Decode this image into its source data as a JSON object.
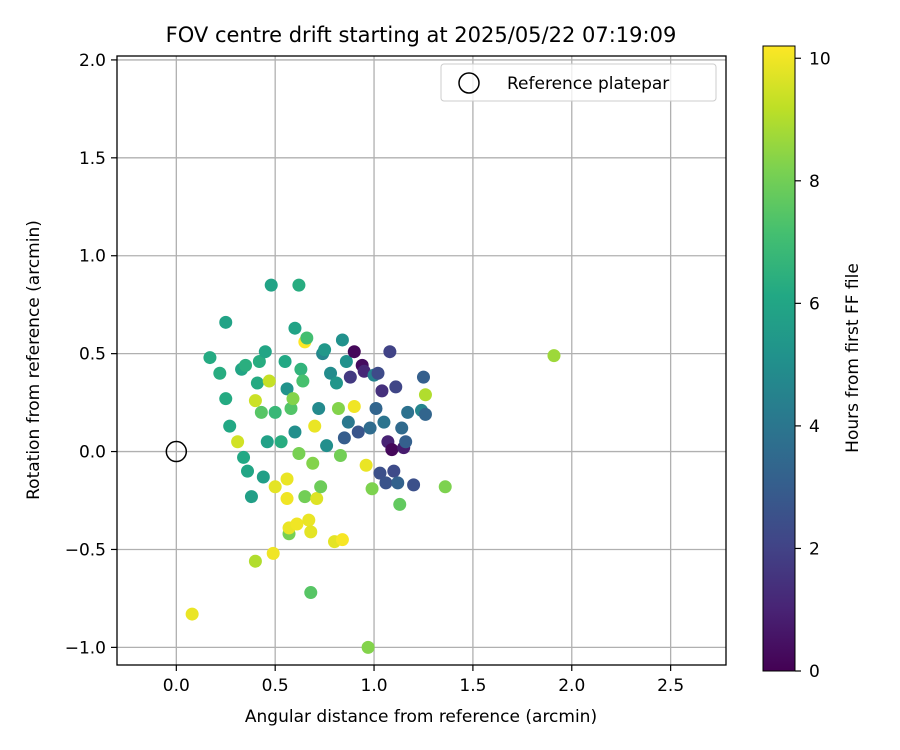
{
  "chart_data": {
    "type": "scatter",
    "title": "FOV centre drift starting at 2025/05/22 07:19:09",
    "xlabel": "Angular distance from reference (arcmin)",
    "ylabel": "Rotation from reference (arcmin)",
    "xlim": [
      -0.3,
      2.78
    ],
    "ylim": [
      -1.09,
      2.02
    ],
    "xticks": [
      0.0,
      0.5,
      1.0,
      1.5,
      2.0,
      2.5
    ],
    "xtick_labels": [
      "0.0",
      "0.5",
      "1.0",
      "1.5",
      "2.0",
      "2.5"
    ],
    "yticks": [
      -1.0,
      -0.5,
      0.0,
      0.5,
      1.0,
      1.5,
      2.0
    ],
    "ytick_labels": [
      "−1.0",
      "−0.5",
      "0.0",
      "0.5",
      "1.0",
      "1.5",
      "2.0"
    ],
    "grid": true,
    "legend": {
      "placement": "top-right",
      "entries": [
        "Reference platepar"
      ]
    },
    "reference_point": {
      "x": 0.0,
      "y": 0.0
    },
    "colorbar": {
      "label": "Hours from first FF file",
      "range": [
        0,
        10.2
      ],
      "ticks": [
        0,
        2,
        4,
        6,
        8,
        10
      ],
      "tick_labels": [
        "0",
        "2",
        "4",
        "6",
        "8",
        "10"
      ],
      "colormap": "viridis"
    },
    "points": [
      {
        "x": 0.08,
        "y": -0.83,
        "h": 9.9
      },
      {
        "x": 0.17,
        "y": 0.48,
        "h": 6.2
      },
      {
        "x": 0.22,
        "y": 0.4,
        "h": 6.3
      },
      {
        "x": 0.25,
        "y": 0.66,
        "h": 5.9
      },
      {
        "x": 0.25,
        "y": 0.27,
        "h": 6.2
      },
      {
        "x": 0.27,
        "y": 0.13,
        "h": 6.1
      },
      {
        "x": 0.31,
        "y": 0.05,
        "h": 9.5
      },
      {
        "x": 0.33,
        "y": 0.42,
        "h": 6.0
      },
      {
        "x": 0.34,
        "y": -0.03,
        "h": 6.1
      },
      {
        "x": 0.35,
        "y": 0.44,
        "h": 6.4
      },
      {
        "x": 0.36,
        "y": -0.1,
        "h": 6.0
      },
      {
        "x": 0.38,
        "y": -0.23,
        "h": 5.7
      },
      {
        "x": 0.4,
        "y": -0.56,
        "h": 9.0
      },
      {
        "x": 0.4,
        "y": 0.26,
        "h": 9.4
      },
      {
        "x": 0.41,
        "y": 0.35,
        "h": 6.2
      },
      {
        "x": 0.42,
        "y": 0.46,
        "h": 6.3
      },
      {
        "x": 0.43,
        "y": 0.2,
        "h": 7.5
      },
      {
        "x": 0.44,
        "y": -0.13,
        "h": 5.7
      },
      {
        "x": 0.45,
        "y": 0.51,
        "h": 6.0
      },
      {
        "x": 0.46,
        "y": 0.05,
        "h": 5.8
      },
      {
        "x": 0.47,
        "y": 0.36,
        "h": 9.3
      },
      {
        "x": 0.48,
        "y": 0.85,
        "h": 5.9
      },
      {
        "x": 0.49,
        "y": -0.52,
        "h": 10.0
      },
      {
        "x": 0.5,
        "y": -0.18,
        "h": 9.8
      },
      {
        "x": 0.5,
        "y": 0.2,
        "h": 6.8
      },
      {
        "x": 0.53,
        "y": 0.05,
        "h": 6.3
      },
      {
        "x": 0.55,
        "y": 0.46,
        "h": 6.1
      },
      {
        "x": 0.56,
        "y": -0.14,
        "h": 9.9
      },
      {
        "x": 0.56,
        "y": 0.32,
        "h": 5.2
      },
      {
        "x": 0.56,
        "y": -0.24,
        "h": 10.0
      },
      {
        "x": 0.57,
        "y": -0.42,
        "h": 8.1
      },
      {
        "x": 0.57,
        "y": -0.39,
        "h": 9.9
      },
      {
        "x": 0.58,
        "y": 0.22,
        "h": 7.4
      },
      {
        "x": 0.59,
        "y": 0.27,
        "h": 8.3
      },
      {
        "x": 0.6,
        "y": 0.63,
        "h": 5.9
      },
      {
        "x": 0.6,
        "y": 0.1,
        "h": 5.0
      },
      {
        "x": 0.61,
        "y": -0.37,
        "h": 10.0
      },
      {
        "x": 0.62,
        "y": 0.85,
        "h": 6.3
      },
      {
        "x": 0.62,
        "y": -0.01,
        "h": 8.1
      },
      {
        "x": 0.63,
        "y": 0.42,
        "h": 6.6
      },
      {
        "x": 0.64,
        "y": 0.36,
        "h": 7.2
      },
      {
        "x": 0.65,
        "y": 0.56,
        "h": 10.2
      },
      {
        "x": 0.65,
        "y": -0.23,
        "h": 8.0
      },
      {
        "x": 0.66,
        "y": 0.58,
        "h": 7.1
      },
      {
        "x": 0.67,
        "y": -0.35,
        "h": 9.9
      },
      {
        "x": 0.68,
        "y": -0.72,
        "h": 7.5
      },
      {
        "x": 0.68,
        "y": -0.41,
        "h": 9.8
      },
      {
        "x": 0.69,
        "y": -0.06,
        "h": 8.3
      },
      {
        "x": 0.7,
        "y": 0.13,
        "h": 9.9
      },
      {
        "x": 0.71,
        "y": -0.24,
        "h": 9.7
      },
      {
        "x": 0.72,
        "y": 0.22,
        "h": 4.8
      },
      {
        "x": 0.73,
        "y": -0.18,
        "h": 7.9
      },
      {
        "x": 0.74,
        "y": 0.5,
        "h": 4.7
      },
      {
        "x": 0.75,
        "y": 0.52,
        "h": 5.4
      },
      {
        "x": 0.76,
        "y": 0.03,
        "h": 5.0
      },
      {
        "x": 0.78,
        "y": 0.4,
        "h": 4.9
      },
      {
        "x": 0.8,
        "y": -0.46,
        "h": 9.8
      },
      {
        "x": 0.81,
        "y": 0.35,
        "h": 5.3
      },
      {
        "x": 0.82,
        "y": 0.22,
        "h": 8.3
      },
      {
        "x": 0.83,
        "y": -0.02,
        "h": 8.0
      },
      {
        "x": 0.84,
        "y": 0.57,
        "h": 5.1
      },
      {
        "x": 0.84,
        "y": -0.45,
        "h": 10.1
      },
      {
        "x": 0.85,
        "y": 0.07,
        "h": 3.0
      },
      {
        "x": 0.86,
        "y": 0.46,
        "h": 5.1
      },
      {
        "x": 0.87,
        "y": 0.15,
        "h": 4.1
      },
      {
        "x": 0.88,
        "y": 0.38,
        "h": 1.7
      },
      {
        "x": 0.9,
        "y": 0.51,
        "h": 0.2
      },
      {
        "x": 0.9,
        "y": 0.23,
        "h": 10.0
      },
      {
        "x": 0.92,
        "y": 0.1,
        "h": 2.7
      },
      {
        "x": 0.94,
        "y": 0.44,
        "h": 0.3
      },
      {
        "x": 0.95,
        "y": 0.41,
        "h": 1.1
      },
      {
        "x": 0.96,
        "y": -0.07,
        "h": 9.9
      },
      {
        "x": 0.97,
        "y": -1.0,
        "h": 8.3
      },
      {
        "x": 0.98,
        "y": 0.12,
        "h": 3.6
      },
      {
        "x": 0.99,
        "y": -0.19,
        "h": 8.2
      },
      {
        "x": 1.0,
        "y": 0.39,
        "h": 4.5
      },
      {
        "x": 1.01,
        "y": 0.22,
        "h": 3.3
      },
      {
        "x": 1.02,
        "y": 0.4,
        "h": 2.3
      },
      {
        "x": 1.03,
        "y": -0.11,
        "h": 2.5
      },
      {
        "x": 1.04,
        "y": 0.31,
        "h": 1.4
      },
      {
        "x": 1.05,
        "y": 0.15,
        "h": 3.9
      },
      {
        "x": 1.06,
        "y": -0.16,
        "h": 2.6
      },
      {
        "x": 1.07,
        "y": 0.05,
        "h": 1.0
      },
      {
        "x": 1.08,
        "y": 0.51,
        "h": 2.0
      },
      {
        "x": 1.09,
        "y": 0.01,
        "h": 0.2
      },
      {
        "x": 1.1,
        "y": -0.1,
        "h": 2.3
      },
      {
        "x": 1.11,
        "y": 0.33,
        "h": 2.1
      },
      {
        "x": 1.12,
        "y": -0.16,
        "h": 3.2
      },
      {
        "x": 1.13,
        "y": -0.27,
        "h": 7.7
      },
      {
        "x": 1.14,
        "y": 0.12,
        "h": 3.5
      },
      {
        "x": 1.15,
        "y": 0.02,
        "h": 0.8
      },
      {
        "x": 1.16,
        "y": 0.05,
        "h": 3.1
      },
      {
        "x": 1.17,
        "y": 0.2,
        "h": 3.8
      },
      {
        "x": 1.2,
        "y": -0.17,
        "h": 2.5
      },
      {
        "x": 1.24,
        "y": 0.21,
        "h": 4.6
      },
      {
        "x": 1.25,
        "y": 0.38,
        "h": 3.1
      },
      {
        "x": 1.26,
        "y": 0.19,
        "h": 3.3
      },
      {
        "x": 1.26,
        "y": 0.29,
        "h": 9.0
      },
      {
        "x": 1.36,
        "y": -0.18,
        "h": 8.2
      },
      {
        "x": 1.91,
        "y": 0.49,
        "h": 8.7
      }
    ]
  }
}
